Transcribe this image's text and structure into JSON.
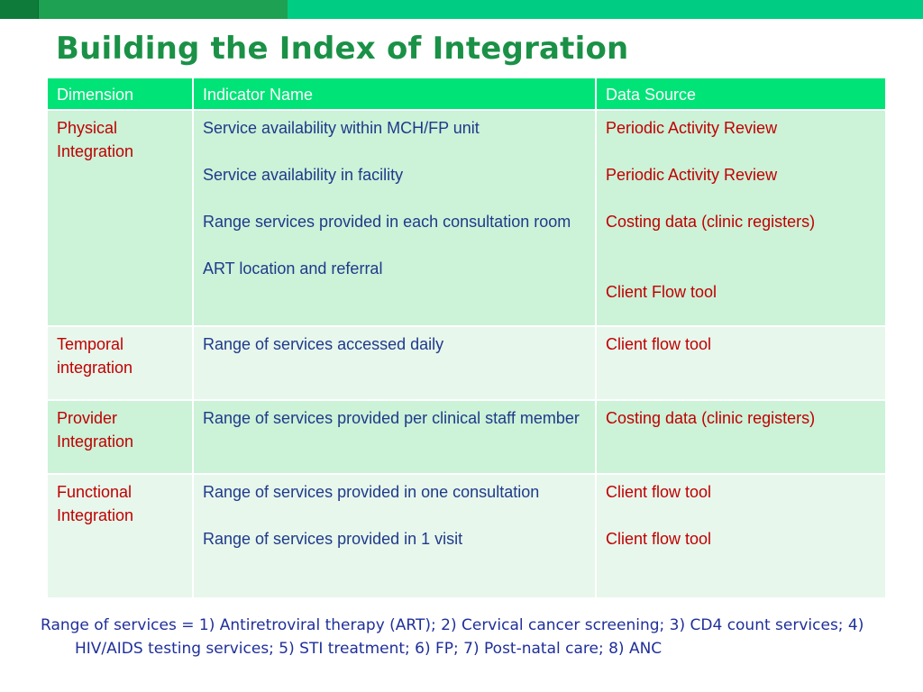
{
  "title": "Building the Index of Integration",
  "colors": {
    "bar_dark": "#0f7b3a",
    "bar_mid": "#1ea152",
    "bar_light": "#00cc83",
    "title": "#1a9146",
    "header_bg": "#00e377",
    "row_dark": "#ccf2d8",
    "row_light": "#e7f7ec",
    "dimension_text": "#c00000",
    "source_text": "#c00000",
    "indicator_text": "#1f3a8a"
  },
  "table": {
    "headers": [
      "Dimension",
      "Indicator Name",
      "Data Source"
    ],
    "rows": [
      {
        "dimension": [
          "Physical",
          "Integration"
        ],
        "indicators": [
          "Service availability within MCH/FP unit",
          "Service availability in facility",
          "Range services provided in each consultation room",
          "ART location and referral"
        ],
        "sources": [
          "Periodic Activity Review",
          "Periodic Activity Review",
          "Costing data (clinic registers)",
          "Client Flow tool"
        ]
      },
      {
        "dimension": [
          "Temporal",
          "integration"
        ],
        "indicators": [
          "Range of services accessed daily"
        ],
        "sources": [
          "Client flow tool"
        ]
      },
      {
        "dimension": [
          "Provider",
          "Integration"
        ],
        "indicators": [
          "Range of services provided per clinical staff member"
        ],
        "sources": [
          "Costing data (clinic registers)"
        ]
      },
      {
        "dimension": [
          "Functional",
          "Integration"
        ],
        "indicators": [
          "Range of services provided in one consultation",
          "Range of services provided in 1 visit"
        ],
        "sources": [
          "Client flow tool",
          "Client flow tool"
        ]
      }
    ]
  },
  "footnote": "Range of services = 1) Antiretroviral therapy (ART); 2) Cervical cancer screening; 3) CD4 count services; 4) HIV/AIDS testing services; 5) STI treatment; 6) FP; 7) Post-natal care; 8) ANC"
}
